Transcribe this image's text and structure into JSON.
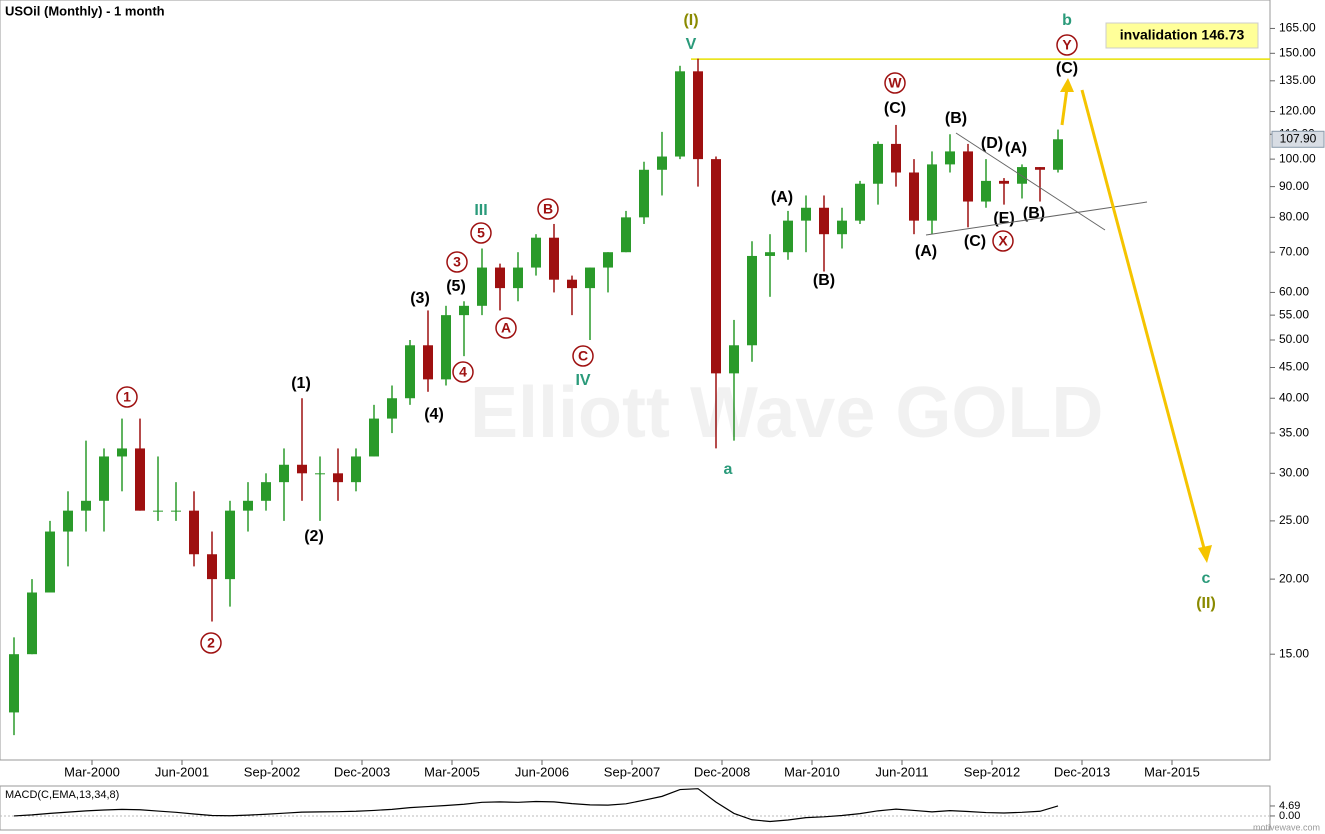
{
  "chart_data": {
    "type": "candlestick",
    "title": "USOil (Monthly) - 1 month",
    "watermark": "Elliott Wave GOLD",
    "credit": "motivewave.com",
    "log_scale": true,
    "up_color": "#2a9a2a",
    "down_color": "#9e1010",
    "ylim": [
      10,
      184
    ],
    "yticks": [
      {
        "value": 15,
        "label": "15.00"
      },
      {
        "value": 20,
        "label": "20.00"
      },
      {
        "value": 25,
        "label": "25.00"
      },
      {
        "value": 30,
        "label": "30.00"
      },
      {
        "value": 35,
        "label": "35.00"
      },
      {
        "value": 40,
        "label": "40.00"
      },
      {
        "value": 45,
        "label": "45.00"
      },
      {
        "value": 50,
        "label": "50.00"
      },
      {
        "value": 55,
        "label": "55.00"
      },
      {
        "value": 60,
        "label": "60.00"
      },
      {
        "value": 70,
        "label": "70.00"
      },
      {
        "value": 80,
        "label": "80.00"
      },
      {
        "value": 90,
        "label": "90.00"
      },
      {
        "value": 100,
        "label": "100.00"
      },
      {
        "value": 110,
        "label": "110.00"
      },
      {
        "value": 120,
        "label": "120.00"
      },
      {
        "value": 135,
        "label": "135.00"
      },
      {
        "value": 150,
        "label": "150.00"
      },
      {
        "value": 165,
        "label": "165.00"
      }
    ],
    "xticks": [
      {
        "value": "2000-03",
        "label": "Mar-2000"
      },
      {
        "value": "2001-06",
        "label": "Jun-2001"
      },
      {
        "value": "2002-09",
        "label": "Sep-2002"
      },
      {
        "value": "2003-12",
        "label": "Dec-2003"
      },
      {
        "value": "2005-03",
        "label": "Mar-2005"
      },
      {
        "value": "2006-06",
        "label": "Jun-2006"
      },
      {
        "value": "2007-09",
        "label": "Sep-2007"
      },
      {
        "value": "2008-12",
        "label": "Dec-2008"
      },
      {
        "value": "2010-03",
        "label": "Mar-2010"
      },
      {
        "value": "2011-06",
        "label": "Jun-2011"
      },
      {
        "value": "2012-09",
        "label": "Sep-2012"
      },
      {
        "value": "2013-12",
        "label": "Dec-2013"
      },
      {
        "value": "2015-03",
        "label": "Mar-2015"
      }
    ],
    "x": [
      "1999-01",
      "1999-04",
      "1999-07",
      "1999-10",
      "2000-01",
      "2000-04",
      "2000-07",
      "2000-10",
      "2001-01",
      "2001-04",
      "2001-07",
      "2001-10",
      "2002-01",
      "2002-04",
      "2002-07",
      "2002-10",
      "2003-01",
      "2003-04",
      "2003-07",
      "2003-10",
      "2004-01",
      "2004-04",
      "2004-07",
      "2004-10",
      "2005-01",
      "2005-04",
      "2005-07",
      "2005-10",
      "2006-01",
      "2006-04",
      "2006-07",
      "2006-10",
      "2007-01",
      "2007-04",
      "2007-07",
      "2007-10",
      "2008-01",
      "2008-04",
      "2008-07",
      "2008-10",
      "2009-01",
      "2009-04",
      "2009-07",
      "2009-10",
      "2010-01",
      "2010-04",
      "2010-07",
      "2010-10",
      "2011-01",
      "2011-04",
      "2011-07",
      "2011-10",
      "2012-01",
      "2012-04",
      "2012-07",
      "2012-10",
      "2013-01",
      "2013-04",
      "2013-07"
    ],
    "ohlc": [
      [
        12,
        16,
        11,
        15
      ],
      [
        15,
        20,
        15,
        19
      ],
      [
        19,
        25,
        19,
        24
      ],
      [
        24,
        28,
        21,
        26
      ],
      [
        26,
        34,
        24,
        27
      ],
      [
        27,
        33,
        24,
        32
      ],
      [
        32,
        37,
        28,
        33
      ],
      [
        33,
        37,
        26,
        26
      ],
      [
        26,
        32,
        25,
        26
      ],
      [
        26,
        29,
        25,
        26
      ],
      [
        26,
        28,
        21,
        22
      ],
      [
        22,
        24,
        17,
        20
      ],
      [
        20,
        27,
        18,
        26
      ],
      [
        26,
        29,
        24,
        27
      ],
      [
        27,
        30,
        26,
        29
      ],
      [
        29,
        33,
        25,
        31
      ],
      [
        31,
        40,
        27,
        30
      ],
      [
        30,
        32,
        25,
        30
      ],
      [
        30,
        33,
        27,
        29
      ],
      [
        29,
        33,
        28,
        32
      ],
      [
        32,
        39,
        32,
        37
      ],
      [
        37,
        42,
        35,
        40
      ],
      [
        40,
        50,
        39,
        49
      ],
      [
        49,
        56,
        41,
        43
      ],
      [
        43,
        57,
        42,
        55
      ],
      [
        55,
        58,
        47,
        57
      ],
      [
        57,
        71,
        55,
        66
      ],
      [
        66,
        67,
        56,
        61
      ],
      [
        61,
        70,
        58,
        66
      ],
      [
        66,
        75,
        64,
        74
      ],
      [
        74,
        78,
        60,
        63
      ],
      [
        63,
        64,
        55,
        61
      ],
      [
        61,
        66,
        50,
        66
      ],
      [
        66,
        70,
        60,
        70
      ],
      [
        70,
        82,
        70,
        80
      ],
      [
        80,
        99,
        78,
        96
      ],
      [
        96,
        111,
        87,
        101
      ],
      [
        101,
        143,
        100,
        140
      ],
      [
        140,
        147,
        90,
        100
      ],
      [
        100,
        101,
        33,
        44
      ],
      [
        44,
        54,
        34,
        49
      ],
      [
        49,
        73,
        46,
        69
      ],
      [
        69,
        75,
        59,
        70
      ],
      [
        70,
        82,
        68,
        79
      ],
      [
        79,
        87,
        70,
        83
      ],
      [
        83,
        87,
        65,
        75
      ],
      [
        75,
        83,
        71,
        79
      ],
      [
        79,
        92,
        78,
        91
      ],
      [
        91,
        107,
        84,
        106
      ],
      [
        106,
        114,
        90,
        95
      ],
      [
        95,
        100,
        75,
        79
      ],
      [
        79,
        103,
        75,
        98
      ],
      [
        98,
        110,
        95,
        103
      ],
      [
        103,
        106,
        77,
        85
      ],
      [
        85,
        100,
        83,
        92
      ],
      [
        92,
        93,
        84,
        91
      ],
      [
        91,
        98,
        86,
        97
      ],
      [
        97,
        97,
        85,
        96
      ],
      [
        96,
        112,
        95,
        107.9
      ]
    ],
    "last_price": {
      "value": 107.9,
      "label": "107.90"
    },
    "invalidation_level": 146.73,
    "invalidation_label": "invalidation 146.73",
    "annotations": [
      {
        "text": "(I)",
        "color": "#8a8a00"
      },
      {
        "text": "V",
        "color": "#2a9a7a"
      },
      {
        "text": "b",
        "color": "#2a9a7a"
      },
      {
        "text": "Y",
        "color": "#9e1010",
        "circled": true
      },
      {
        "text": "(C)",
        "color": "#000000"
      },
      {
        "text": "W",
        "color": "#9e1010",
        "circled": true
      },
      {
        "text": "(C)",
        "color": "#000000"
      },
      {
        "text": "(B)",
        "color": "#000000"
      },
      {
        "text": "(D)",
        "color": "#000000"
      },
      {
        "text": "(A)",
        "color": "#000000"
      },
      {
        "text": "(A)",
        "color": "#000000"
      },
      {
        "text": "(C)",
        "color": "#000000"
      },
      {
        "text": "X",
        "color": "#9e1010",
        "circled": true
      },
      {
        "text": "(E)",
        "color": "#000000"
      },
      {
        "text": "(B)",
        "color": "#000000"
      },
      {
        "text": "(A)",
        "color": "#000000"
      },
      {
        "text": "(B)",
        "color": "#000000"
      },
      {
        "text": "a",
        "color": "#2a9a7a"
      },
      {
        "text": "c",
        "color": "#2a9a7a"
      },
      {
        "text": "(II)",
        "color": "#8a8a00"
      },
      {
        "text": "III",
        "color": "#2a9a7a"
      },
      {
        "text": "B",
        "color": "#9e1010",
        "circled": true
      },
      {
        "text": "5",
        "color": "#9e1010",
        "circled": true
      },
      {
        "text": "3",
        "color": "#9e1010",
        "circled": true
      },
      {
        "text": "(5)",
        "color": "#000000"
      },
      {
        "text": "(3)",
        "color": "#000000"
      },
      {
        "text": "A",
        "color": "#9e1010",
        "circled": true
      },
      {
        "text": "C",
        "color": "#9e1010",
        "circled": true
      },
      {
        "text": "IV",
        "color": "#2a9a7a"
      },
      {
        "text": "4",
        "color": "#9e1010",
        "circled": true
      },
      {
        "text": "(4)",
        "color": "#000000"
      },
      {
        "text": "(1)",
        "color": "#000000"
      },
      {
        "text": "(2)",
        "color": "#000000"
      },
      {
        "text": "1",
        "color": "#9e1010",
        "circled": true
      },
      {
        "text": "2",
        "color": "#9e1010",
        "circled": true
      }
    ],
    "macd": {
      "title": "MACD(C,EMA,13,34,8)",
      "color": "#000000",
      "ylim": [
        -6.6,
        13.6
      ],
      "yticks": [
        4.69,
        {
          "value": 0,
          "label": "0.00"
        }
      ],
      "values": [
        0,
        0.5,
        1.2,
        1.8,
        2.4,
        2.8,
        3.1,
        2.9,
        2.3,
        1.7,
        0.9,
        0.2,
        0.1,
        0.4,
        0.8,
        1.3,
        1.8,
        1.9,
        2,
        2.2,
        2.6,
        3.1,
        3.9,
        4.4,
        4.9,
        5.5,
        6.4,
        6.6,
        6.4,
        6.8,
        6.6,
        5.8,
        5.2,
        5.1,
        5.7,
        7.4,
        9.2,
        12.4,
        12.8,
        6.5,
        1.2,
        -1.8,
        -2.6,
        -1.9,
        -0.8,
        -0.4,
        0.2,
        1.1,
        2.4,
        3.2,
        2.6,
        1.9,
        2.5,
        2.1,
        1.6,
        1.4,
        1.7,
        2.2,
        4.69
      ]
    }
  }
}
